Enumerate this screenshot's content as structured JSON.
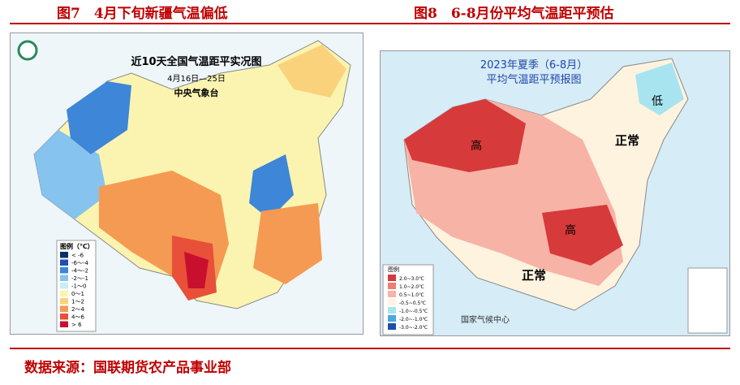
{
  "header": {
    "left_caption": "图7　4月下旬新疆气温偏低",
    "right_caption": "图8　6-8月份平均气温距平预估"
  },
  "left_map": {
    "title": "近10天全国气温距平实况图",
    "subtitle": "4月16日—25日",
    "agency": "中央气象台",
    "legend_title": "图例（℃）",
    "legend": [
      {
        "label": "< -6",
        "color": "#08306b"
      },
      {
        "label": "-6～-4",
        "color": "#1f4fb4"
      },
      {
        "label": "-4～-2",
        "color": "#3d86d8"
      },
      {
        "label": "-2～-1",
        "color": "#86c3ee"
      },
      {
        "label": "-1～0",
        "color": "#c9ecf5"
      },
      {
        "label": "0～1",
        "color": "#fbf4b0"
      },
      {
        "label": "1～2",
        "color": "#fbd27c"
      },
      {
        "label": "2～4",
        "color": "#f59a52"
      },
      {
        "label": "4～6",
        "color": "#e8503a"
      },
      {
        "label": "> 6",
        "color": "#c8102e"
      }
    ]
  },
  "right_map": {
    "title_line1": "2023年夏季（6-8月）",
    "title_line2": "平均气温距平预报图",
    "high_nw": "高",
    "high_c": "高",
    "low_ne": "低",
    "normal_e": "正常",
    "normal_s": "正常",
    "legend_title": "图例",
    "agency": "国家气候中心",
    "legend": [
      {
        "label": "2.0~3.0℃",
        "color": "#d73a3a"
      },
      {
        "label": "1.0~2.0℃",
        "color": "#ee7e72"
      },
      {
        "label": "0.5~1.0℃",
        "color": "#f6b3a6"
      },
      {
        "label": "-0.5~0.5℃",
        "color": "#fdf3df"
      },
      {
        "label": "-1.0~-0.5℃",
        "color": "#a8e4f0"
      },
      {
        "label": "-2.0~-1.0℃",
        "color": "#4aa7e0"
      },
      {
        "label": "-3.0~-2.0℃",
        "color": "#1c4fa8"
      }
    ]
  },
  "source": "数据来源：国联期货农产品事业部"
}
